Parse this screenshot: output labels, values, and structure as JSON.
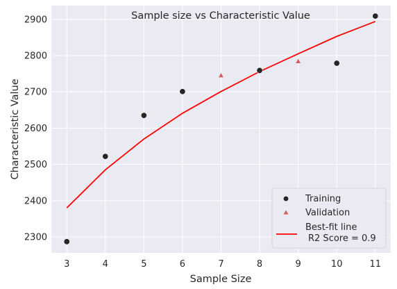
{
  "chart_data": {
    "type": "scatter",
    "title": "Sample size vs Characteristic Value",
    "xlabel": "Sample Size",
    "ylabel": "Characteristic Value",
    "xlim": [
      2.6,
      11.4
    ],
    "ylim": [
      2256,
      2938
    ],
    "xticks": [
      3,
      4,
      5,
      6,
      7,
      8,
      9,
      10,
      11
    ],
    "yticks": [
      2300,
      2400,
      2500,
      2600,
      2700,
      2800,
      2900
    ],
    "grid": true,
    "legend_position": "lower-right",
    "colors": {
      "background": "#eaeaf2",
      "grid": "#ffffff",
      "training": "#262626",
      "validation": "#d65f5f",
      "fit": "#ff0000"
    },
    "series": [
      {
        "name": "Training",
        "kind": "scatter",
        "marker": "circle",
        "points": [
          {
            "x": 3,
            "y": 2287
          },
          {
            "x": 4,
            "y": 2522
          },
          {
            "x": 5,
            "y": 2635
          },
          {
            "x": 6,
            "y": 2701
          },
          {
            "x": 8,
            "y": 2759
          },
          {
            "x": 10,
            "y": 2779
          },
          {
            "x": 11,
            "y": 2909
          }
        ]
      },
      {
        "name": "Validation",
        "kind": "scatter",
        "marker": "triangle",
        "points": [
          {
            "x": 7,
            "y": 2745
          },
          {
            "x": 9,
            "y": 2784
          }
        ]
      },
      {
        "name": "Best-fit line",
        "name_line2": "R2 Score = 0.9",
        "kind": "line",
        "points": [
          {
            "x": 3,
            "y": 2380
          },
          {
            "x": 4,
            "y": 2485
          },
          {
            "x": 5,
            "y": 2570
          },
          {
            "x": 6,
            "y": 2641
          },
          {
            "x": 7,
            "y": 2701
          },
          {
            "x": 8,
            "y": 2756
          },
          {
            "x": 9,
            "y": 2805
          },
          {
            "x": 10,
            "y": 2853
          },
          {
            "x": 11,
            "y": 2894
          }
        ]
      }
    ]
  }
}
